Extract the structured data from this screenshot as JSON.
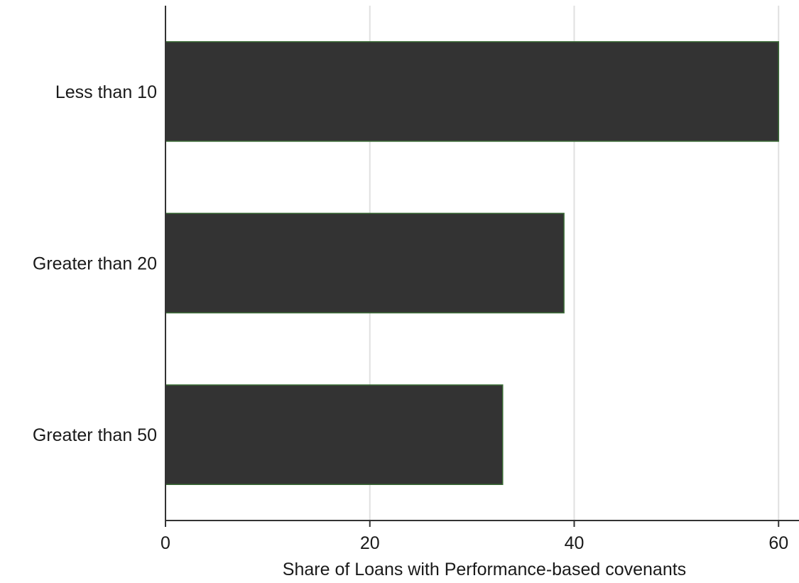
{
  "chart_data": {
    "type": "bar",
    "orientation": "horizontal",
    "categories": [
      "Less than 10",
      "Greater than 20",
      "Greater than 50"
    ],
    "values": [
      60,
      39,
      33
    ],
    "title": "",
    "xlabel": "Share of Loans with Performance-based covenants",
    "ylabel": "",
    "xlim": [
      0,
      62
    ],
    "xticks": [
      0,
      20,
      40,
      60
    ],
    "xtick_labels": [
      "0",
      "20",
      "40",
      "60"
    ],
    "grid": true,
    "legend": "none",
    "colors": {
      "bar_fill": "#333333",
      "bar_edge": "#3a6b35",
      "grid": "#e0e0e0",
      "axis": "#333333"
    }
  }
}
